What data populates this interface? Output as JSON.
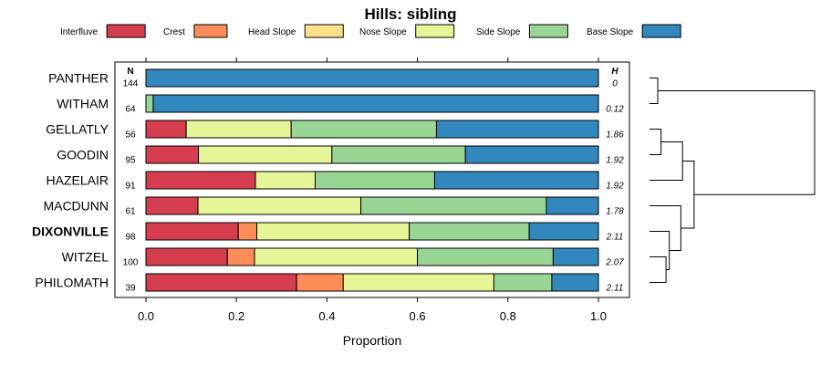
{
  "chart_data": {
    "type": "bar",
    "orientation": "horizontal",
    "stacked": true,
    "title": "Hills: sibling",
    "xlabel": "Proportion",
    "xlim": [
      0,
      1
    ],
    "xticks": [
      "0.0",
      "0.2",
      "0.4",
      "0.6",
      "0.8",
      "1.0"
    ],
    "xtick_values": [
      0,
      0.2,
      0.4,
      0.6,
      0.8,
      1.0
    ],
    "legend": [
      {
        "name": "Interfluve",
        "color": "#D53E4F"
      },
      {
        "name": "Crest",
        "color": "#FC8D59"
      },
      {
        "name": "Head Slope",
        "color": "#FEE08B"
      },
      {
        "name": "Nose Slope",
        "color": "#E6F598"
      },
      {
        "name": "Side Slope",
        "color": "#99D594"
      },
      {
        "name": "Base Slope",
        "color": "#3288BD"
      }
    ],
    "n_header": "N",
    "h_header": "H",
    "rows": [
      {
        "label": "PANTHER",
        "n": "144",
        "h": "0",
        "bold": false,
        "values": [
          0,
          0,
          0,
          0,
          0,
          1.0
        ]
      },
      {
        "label": "WITHAM",
        "n": "64",
        "h": "0.12",
        "bold": false,
        "values": [
          0,
          0,
          0,
          0,
          0.016,
          0.984
        ]
      },
      {
        "label": "GELLATLY",
        "n": "56",
        "h": "1.86",
        "bold": false,
        "values": [
          0.089,
          0,
          0,
          0.232,
          0.321,
          0.358
        ]
      },
      {
        "label": "GOODIN",
        "n": "95",
        "h": "1.92",
        "bold": false,
        "values": [
          0.116,
          0,
          0,
          0.295,
          0.295,
          0.294
        ]
      },
      {
        "label": "HAZELAIR",
        "n": "91",
        "h": "1.92",
        "bold": false,
        "values": [
          0.242,
          0,
          0,
          0.132,
          0.264,
          0.362
        ]
      },
      {
        "label": "MACDUNN",
        "n": "61",
        "h": "1.78",
        "bold": false,
        "values": [
          0.115,
          0,
          0,
          0.36,
          0.41,
          0.115
        ]
      },
      {
        "label": "DIXONVILLE",
        "n": "98",
        "h": "2.11",
        "bold": true,
        "values": [
          0.204,
          0.041,
          0,
          0.337,
          0.265,
          0.153
        ]
      },
      {
        "label": "WITZEL",
        "n": "100",
        "h": "2.07",
        "bold": false,
        "values": [
          0.18,
          0.06,
          0,
          0.36,
          0.3,
          0.1
        ]
      },
      {
        "label": "PHILOMATH",
        "n": "39",
        "h": "2.11",
        "bold": false,
        "values": [
          0.333,
          0.103,
          0,
          0.333,
          0.128,
          0.103
        ]
      }
    ],
    "dendrogram_merges": [
      {
        "a": "PANTHER",
        "b": "WITHAM",
        "height": 0.05
      },
      {
        "a": "GELLATLY",
        "b": "GOODIN",
        "height": 0.07
      },
      {
        "a": "GELLATLY+GOODIN",
        "b": "HAZELAIR",
        "height": 0.2
      },
      {
        "a": "WITZEL",
        "b": "PHILOMATH",
        "height": 0.1
      },
      {
        "a": "DIXONVILLE",
        "b": "WITZEL+PHILOMATH",
        "height": 0.12
      },
      {
        "a": "MACDUNN",
        "b": "DIXONVILLE+WITZEL+PHILOMATH",
        "height": 0.19
      },
      {
        "a": "GELLATLY+GOODIN+HAZELAIR",
        "b": "MACDUNN+DIXONVILLE+WITZEL+PHILOMATH",
        "height": 0.27
      },
      {
        "a": "PANTHER+WITHAM",
        "b": "REST",
        "height": 1.0
      }
    ]
  }
}
